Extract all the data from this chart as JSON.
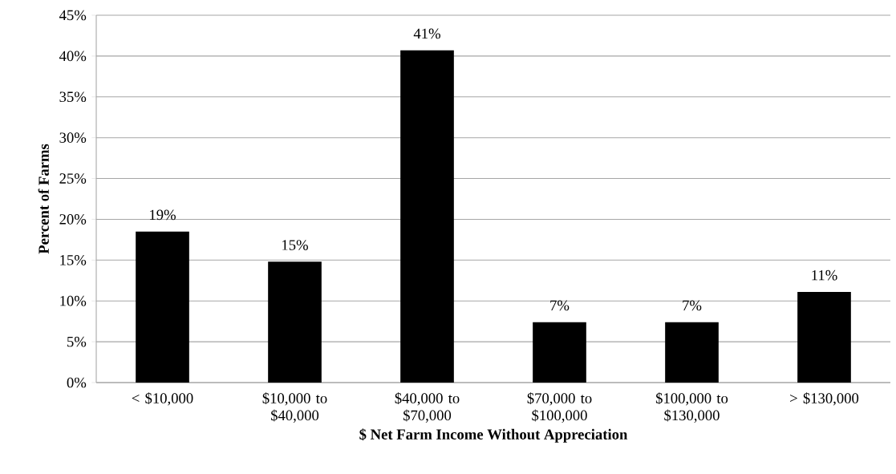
{
  "chart_data": {
    "type": "bar",
    "xlabel": "$ Net Farm Income Without Appreciation",
    "ylabel": "Percent of Farms",
    "categories": [
      "< $10,000",
      "$10,000 to $40,000",
      "$40,000 to $70,000",
      "$70,000 to $100,000",
      "$100,000 to $130,000",
      "> $130,000"
    ],
    "values": [
      18.5,
      14.8,
      40.7,
      7.4,
      7.4,
      11.1
    ],
    "value_labels": [
      "19%",
      "15%",
      "41%",
      "7%",
      "7%",
      "11%"
    ],
    "color": "#000000",
    "ylim": [
      0,
      45
    ],
    "yticks": [
      {
        "value": 0,
        "label": "0%"
      },
      {
        "value": 5,
        "label": "5%"
      },
      {
        "value": 10,
        "label": "10%"
      },
      {
        "value": 15,
        "label": "15%"
      },
      {
        "value": 20,
        "label": "20%"
      },
      {
        "value": 25,
        "label": "25%"
      },
      {
        "value": 30,
        "label": "30%"
      },
      {
        "value": 35,
        "label": "35%"
      },
      {
        "value": 40,
        "label": "40%"
      },
      {
        "value": 45,
        "label": "45%"
      }
    ],
    "grid": "y"
  }
}
